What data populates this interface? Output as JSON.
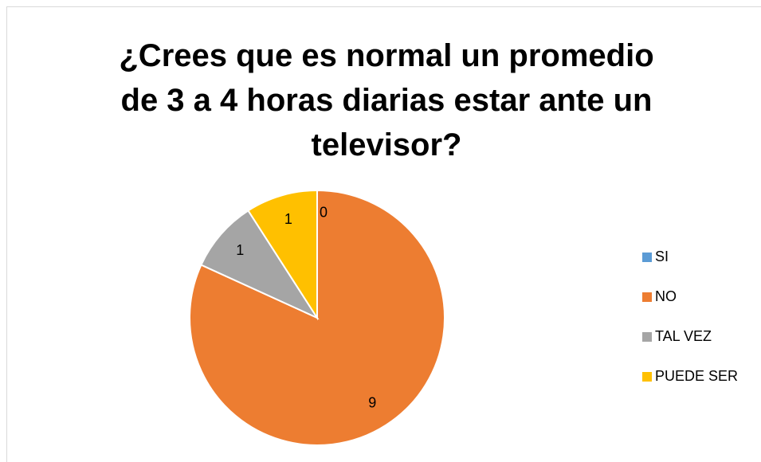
{
  "chart_data": {
    "type": "pie",
    "title": "¿Crees que es normal un promedio de 3 a 4 horas diarias estar ante un televisor?",
    "categories": [
      "SI",
      "NO",
      "TAL VEZ",
      "PUEDE SER"
    ],
    "values": [
      0,
      9,
      1,
      1
    ],
    "colors": [
      "#5b9bd5",
      "#ed7d31",
      "#a5a5a5",
      "#ffc000"
    ],
    "legend": "right"
  }
}
